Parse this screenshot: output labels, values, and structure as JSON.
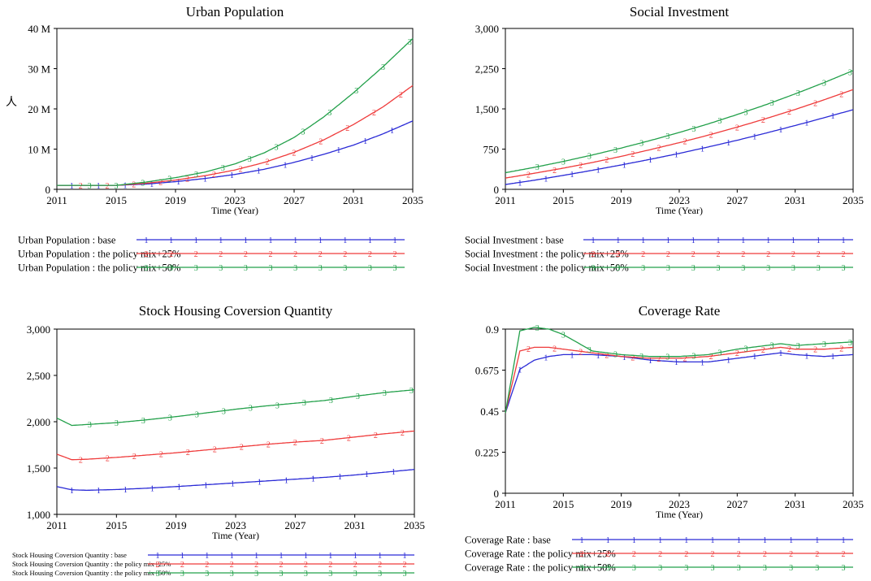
{
  "figure": {
    "colors": {
      "base": "#2a2ad6",
      "p25": "#ef3b3b",
      "p50": "#22a04a",
      "axis": "#000000"
    },
    "x_tick_labels": [
      "2011",
      "2015",
      "2019",
      "2023",
      "2027",
      "2031",
      "2035"
    ]
  },
  "chart_data": [
    {
      "type": "line",
      "title": "Urban Population",
      "xlabel": "Time (Year)",
      "ylabel": "人",
      "xlim": [
        2011,
        2035
      ],
      "ylim": [
        0,
        40000000
      ],
      "yticks": [
        0,
        10000000,
        20000000,
        30000000,
        40000000
      ],
      "ytick_labels": [
        "0",
        "10 M",
        "20 M",
        "30 M",
        "40 M"
      ],
      "x": [
        2011,
        2013,
        2015,
        2017,
        2019,
        2021,
        2023,
        2025,
        2027,
        2029,
        2031,
        2033,
        2035
      ],
      "series": [
        {
          "name": "Urban Population : base",
          "marker": "1",
          "values": [
            1000000.0,
            1000000.0,
            1000000.0,
            1300000.0,
            1900000.0,
            2700000.0,
            3700000.0,
            5000000.0,
            6700000.0,
            8700000.0,
            11000000.0,
            13800000.0,
            17000000.0
          ]
        },
        {
          "name": "Urban Population : the policy mix+25%",
          "marker": "2",
          "values": [
            1000000.0,
            1000000.0,
            1000000.0,
            1500000.0,
            2300000.0,
            3400000.0,
            4800000.0,
            6700000.0,
            9200000.0,
            12300000.0,
            16100000.0,
            20500000.0,
            25800000.0
          ]
        },
        {
          "name": "Urban Population : the policy mix+50%",
          "marker": "3",
          "values": [
            1000000.0,
            1000000.0,
            1000000.0,
            1800000.0,
            2900000.0,
            4300000.0,
            6300000.0,
            9100000.0,
            12900000.0,
            18000000.0,
            24000000.0,
            30500000.0,
            37500000.0
          ]
        }
      ]
    },
    {
      "type": "line",
      "title": "Social Investment",
      "xlabel": "Time (Year)",
      "ylabel": "",
      "xlim": [
        2011,
        2035
      ],
      "ylim": [
        0,
        3000
      ],
      "yticks": [
        0,
        750,
        1500,
        2250,
        3000
      ],
      "ytick_labels": [
        "0",
        "750",
        "1,500",
        "2,250",
        "3,000"
      ],
      "x": [
        2011,
        2013,
        2015,
        2017,
        2019,
        2021,
        2023,
        2025,
        2027,
        2029,
        2031,
        2033,
        2035
      ],
      "series": [
        {
          "name": "Social Investment : base",
          "marker": "1",
          "values": [
            90,
            170,
            260,
            355,
            455,
            560,
            670,
            790,
            915,
            1050,
            1190,
            1335,
            1485
          ]
        },
        {
          "name": "Social Investment : the policy mix+25%",
          "marker": "2",
          "values": [
            210,
            300,
            395,
            500,
            615,
            740,
            870,
            1010,
            1160,
            1320,
            1490,
            1670,
            1860
          ]
        },
        {
          "name": "Social Investment : the policy mix+50%",
          "marker": "3",
          "values": [
            310,
            410,
            520,
            640,
            770,
            910,
            1060,
            1220,
            1395,
            1580,
            1780,
            1990,
            2215
          ]
        }
      ]
    },
    {
      "type": "line",
      "title": "Stock Housing Coversion Quantity",
      "xlabel": "Time (Year)",
      "ylabel": "",
      "xlim": [
        2011,
        2035
      ],
      "ylim": [
        1000,
        3000
      ],
      "yticks": [
        1000,
        1500,
        2000,
        2500,
        3000
      ],
      "ytick_labels": [
        "1,000",
        "1,500",
        "2,000",
        "2,500",
        "3,000"
      ],
      "x": [
        2011,
        2012,
        2013,
        2015,
        2017,
        2019,
        2021,
        2023,
        2025,
        2027,
        2029,
        2031,
        2033,
        2035
      ],
      "series": [
        {
          "name": "Stock Housing Coversion Quantity : base",
          "marker": "1",
          "values": [
            1300,
            1265,
            1260,
            1268,
            1282,
            1300,
            1320,
            1340,
            1360,
            1380,
            1400,
            1425,
            1455,
            1485
          ]
        },
        {
          "name": "Stock Housing Coversion Quantity : the policy mix+25%",
          "marker": "2",
          "values": [
            1650,
            1590,
            1595,
            1615,
            1640,
            1665,
            1695,
            1725,
            1755,
            1780,
            1800,
            1835,
            1870,
            1900
          ]
        },
        {
          "name": "Stock Housing Coversion Quantity : the policy mix+50%",
          "marker": "3",
          "values": [
            2040,
            1960,
            1970,
            1990,
            2020,
            2055,
            2095,
            2135,
            2170,
            2200,
            2230,
            2275,
            2315,
            2345
          ]
        }
      ]
    },
    {
      "type": "line",
      "title": "Coverage Rate",
      "xlabel": "Time (Year)",
      "ylabel": "",
      "xlim": [
        2011,
        2035
      ],
      "ylim": [
        0,
        0.9
      ],
      "yticks": [
        0,
        0.225,
        0.45,
        0.675,
        0.9
      ],
      "ytick_labels": [
        "0",
        "0.225",
        "0.45",
        "0.675",
        "0.9"
      ],
      "x": [
        2011,
        2012,
        2013,
        2014,
        2015,
        2017,
        2019,
        2021,
        2023,
        2025,
        2027,
        2029,
        2030,
        2031,
        2033,
        2035
      ],
      "series": [
        {
          "name": "Coverage Rate : base",
          "marker": "1",
          "values": [
            0.44,
            0.68,
            0.73,
            0.75,
            0.76,
            0.76,
            0.75,
            0.73,
            0.72,
            0.72,
            0.74,
            0.76,
            0.77,
            0.76,
            0.75,
            0.76
          ]
        },
        {
          "name": "Coverage Rate : the policy mix+25%",
          "marker": "2",
          "values": [
            0.44,
            0.78,
            0.8,
            0.8,
            0.79,
            0.77,
            0.75,
            0.74,
            0.74,
            0.75,
            0.77,
            0.79,
            0.8,
            0.79,
            0.79,
            0.8
          ]
        },
        {
          "name": "Coverage Rate : the policy mix+50%",
          "marker": "3",
          "values": [
            0.44,
            0.89,
            0.91,
            0.9,
            0.87,
            0.78,
            0.76,
            0.75,
            0.75,
            0.76,
            0.79,
            0.81,
            0.82,
            0.81,
            0.82,
            0.83
          ]
        }
      ]
    }
  ]
}
